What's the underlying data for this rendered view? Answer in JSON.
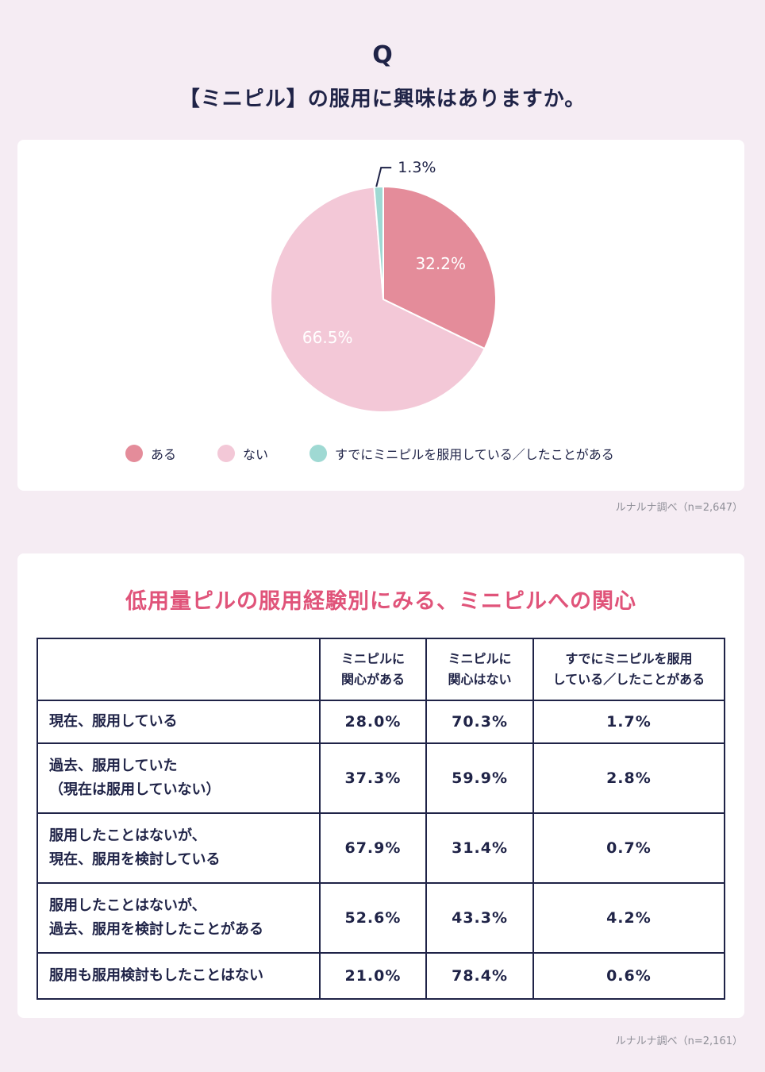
{
  "header": {
    "q_letter": "Q",
    "question": "【ミニピル】の服用に興味はありますか。"
  },
  "chart_data": {
    "type": "pie",
    "title": "",
    "slices": [
      {
        "label": "ある",
        "value": 32.2,
        "display": "32.2%",
        "color": "#e48c9a"
      },
      {
        "label": "ない",
        "value": 66.5,
        "display": "66.5%",
        "color": "#f3c8d7"
      },
      {
        "label": "すでにミニピルを服用している／したことがある",
        "value": 1.3,
        "display": "1.3%",
        "color": "#9fd9d3"
      }
    ],
    "legend_position": "bottom"
  },
  "pie_source": "ルナルナ調べ（n=2,647）",
  "table": {
    "title": "低用量ピルの服用経験別にみる、ミニピルへの関心",
    "headers": [
      "",
      "ミニピルに\n関心がある",
      "ミニピルに\n関心はない",
      "すでにミニピルを服用\nしている／したことがある"
    ],
    "rows": [
      {
        "label": "現在、服用している",
        "values": [
          "28.0%",
          "70.3%",
          "1.7%"
        ]
      },
      {
        "label": "過去、服用していた\n（現在は服用していない）",
        "values": [
          "37.3%",
          "59.9%",
          "2.8%"
        ]
      },
      {
        "label": "服用したことはないが、\n現在、服用を検討している",
        "values": [
          "67.9%",
          "31.4%",
          "0.7%"
        ]
      },
      {
        "label": "服用したことはないが、\n過去、服用を検討したことがある",
        "values": [
          "52.6%",
          "43.3%",
          "4.2%"
        ]
      },
      {
        "label": "服用も服用検討もしたことはない",
        "values": [
          "21.0%",
          "78.4%",
          "0.6%"
        ]
      }
    ]
  },
  "table_source": "ルナルナ調べ（n=2,161）"
}
